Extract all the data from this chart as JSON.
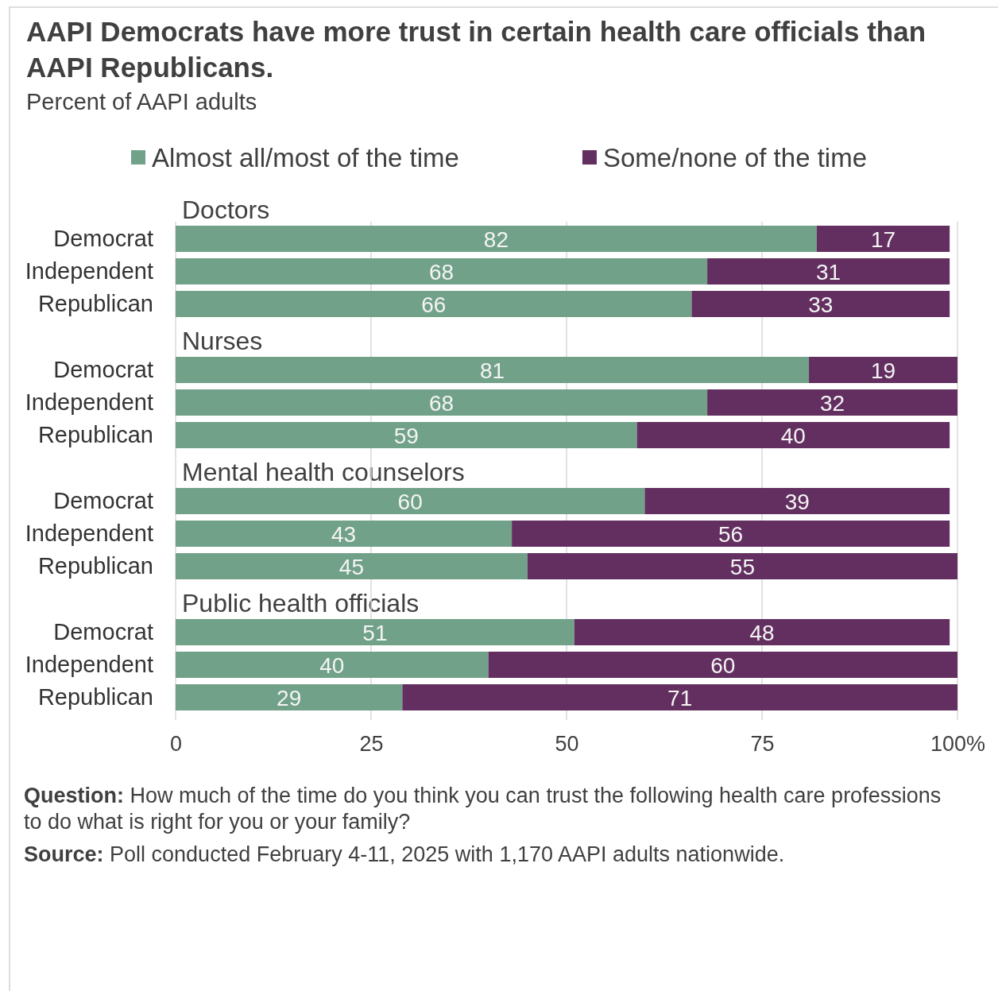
{
  "chart_data": [
    {
      "type": "other",
      "title": "AAPI Democrats have more trust in certain health care officials than AAPI Republicans.",
      "subtitle": "Percent of AAPI adults"
    },
    {
      "type": "bar",
      "orientation": "horizontal",
      "stacked": true,
      "title": "Doctors",
      "categories": [
        "Democrat",
        "Independent",
        "Republican"
      ],
      "series": [
        {
          "name": "Almost all/most of the time",
          "color": "#71a188",
          "values": [
            82,
            68,
            66
          ]
        },
        {
          "name": "Some/none of the time",
          "color": "#632f60",
          "values": [
            17,
            31,
            33
          ]
        }
      ],
      "xlim": [
        0,
        100
      ],
      "grid": "x",
      "legend": "top",
      "data_labels": true,
      "tick_labels": "y"
    },
    {
      "type": "bar",
      "orientation": "horizontal",
      "stacked": true,
      "title": "Nurses",
      "categories": [
        "Democrat",
        "Independent",
        "Republican"
      ],
      "series": [
        {
          "color": "#71a188",
          "values": [
            81,
            68,
            59
          ]
        },
        {
          "color": "#632f60",
          "values": [
            19,
            32,
            40
          ]
        }
      ],
      "xlim": [
        0,
        100
      ],
      "grid": "x",
      "data_labels": true,
      "tick_labels": "y"
    },
    {
      "type": "bar",
      "orientation": "horizontal",
      "stacked": true,
      "title": "Mental health counselors",
      "categories": [
        "Democrat",
        "Independent",
        "Republican"
      ],
      "series": [
        {
          "color": "#71a188",
          "values": [
            60,
            43,
            45
          ]
        },
        {
          "color": "#632f60",
          "values": [
            39,
            56,
            55
          ]
        }
      ],
      "xlim": [
        0,
        100
      ],
      "grid": "x",
      "data_labels": true,
      "tick_labels": "y"
    },
    {
      "type": "bar",
      "orientation": "horizontal",
      "stacked": true,
      "title": "Public health officials",
      "categories": [
        "Democrat",
        "Independent",
        "Republican"
      ],
      "series": [
        {
          "color": "#71a188",
          "values": [
            51,
            40,
            29
          ]
        },
        {
          "color": "#632f60",
          "values": [
            48,
            60,
            71
          ]
        }
      ],
      "xlim": [
        0,
        100
      ],
      "xticks": [
        0,
        25,
        50,
        75,
        {
          "value": 100,
          "label": "100%"
        }
      ],
      "grid": "x",
      "data_labels": true,
      "annotations": [
        "Question: How much of the time do you think you can trust the following health care professions to do what is right for you or your family?",
        "Source: Poll conducted February 4-11, 2025 with 1,170 AAPI adults nationwide."
      ]
    }
  ]
}
